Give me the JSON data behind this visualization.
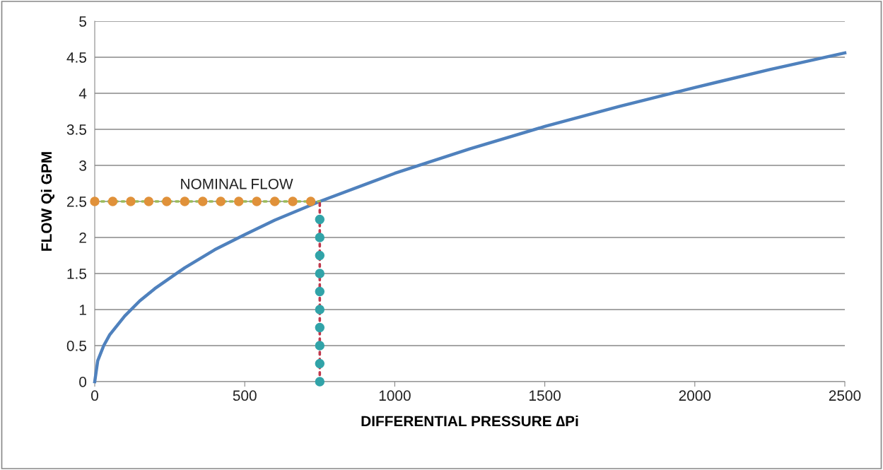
{
  "chart_data": {
    "type": "line",
    "xlabel": "DIFFERENTIAL PRESSURE ∆Pi",
    "ylabel": "FLOW Qi GPM",
    "series": [
      {
        "color": "#4f81bd",
        "line_style": "solid",
        "marker": "none",
        "x": [
          0,
          10,
          30,
          50,
          100,
          150,
          200,
          300,
          400,
          500,
          600,
          750,
          1000,
          1250,
          1500,
          1750,
          2000,
          2250,
          2500
        ],
        "values": [
          0,
          0.29,
          0.5,
          0.65,
          0.91,
          1.12,
          1.29,
          1.58,
          1.83,
          2.04,
          2.24,
          2.5,
          2.89,
          3.23,
          3.54,
          3.82,
          4.08,
          4.33,
          4.56
        ]
      },
      {
        "color": "#9bbb59",
        "line_style": "dotted",
        "marker": "none",
        "x": [
          0,
          750
        ],
        "values": [
          2.5,
          2.5
        ]
      },
      {
        "type": "scatter",
        "color": "#e0913a",
        "marker": "circle",
        "x": [
          0,
          60,
          120,
          180,
          240,
          300,
          360,
          420,
          480,
          540,
          600,
          660,
          720
        ],
        "values": [
          2.5,
          2.5,
          2.5,
          2.5,
          2.5,
          2.5,
          2.5,
          2.5,
          2.5,
          2.5,
          2.5,
          2.5,
          2.5
        ]
      },
      {
        "color": "#c0394d",
        "line_style": "dotted",
        "marker": "none",
        "x": [
          750,
          750
        ],
        "values": [
          0,
          2.5
        ]
      },
      {
        "type": "scatter",
        "color": "#31a3a8",
        "marker": "circle",
        "x": [
          750,
          750,
          750,
          750,
          750,
          750,
          750,
          750,
          750,
          750
        ],
        "values": [
          0,
          0.25,
          0.5,
          0.75,
          1,
          1.25,
          1.5,
          1.75,
          2,
          2.25
        ]
      }
    ],
    "annotations": [
      "NOMINAL FLOW"
    ],
    "xlim": [
      0,
      2500
    ],
    "xticks": [
      0,
      500,
      1000,
      1500,
      2000,
      2500
    ],
    "ylim": [
      0,
      5
    ],
    "yticks": [
      0,
      0.5,
      1,
      1.5,
      2,
      2.5,
      3,
      3.5,
      4,
      4.5,
      5
    ],
    "grid": "y",
    "legend": false
  }
}
